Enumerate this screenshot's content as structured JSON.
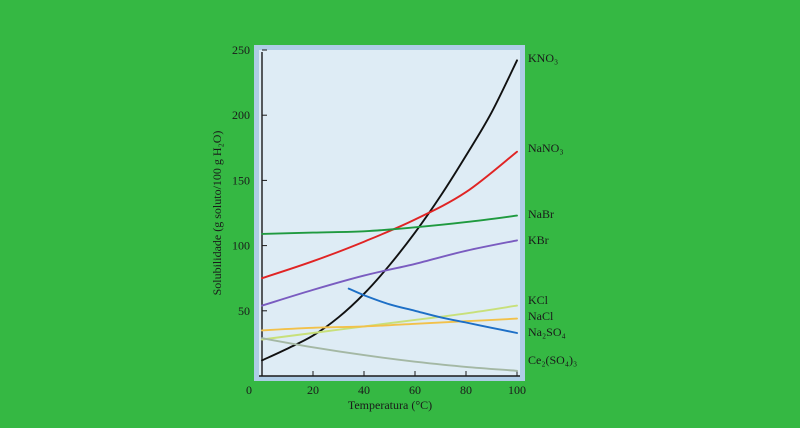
{
  "chart_data": {
    "type": "line",
    "xlabel": "Temperatura (°C)",
    "ylabel": "Solubilidade (g soluto/100 g H₂O)",
    "xlim": [
      0,
      100
    ],
    "ylim": [
      0,
      250
    ],
    "x_ticks": [
      "0",
      "20",
      "40",
      "60",
      "80",
      "100"
    ],
    "y_ticks": [
      "50",
      "100",
      "150",
      "200",
      "250"
    ],
    "grid": false,
    "legend": "labels at right end of each curve",
    "colors": {
      "background": "#35b843",
      "plot_fill": "#deecf5",
      "frame": "#aecde6",
      "axis": "#1a1a1a"
    },
    "series": [
      {
        "name": "KNO₃",
        "color": "#111111",
        "x": [
          0,
          10,
          20,
          30,
          40,
          50,
          60,
          70,
          80,
          90,
          100
        ],
        "y": [
          12,
          21,
          31,
          45,
          63,
          85,
          110,
          138,
          169,
          202,
          242
        ]
      },
      {
        "name": "NaNO₃",
        "color": "#e02424",
        "x": [
          0,
          20,
          40,
          60,
          80,
          100
        ],
        "y": [
          75,
          88,
          103,
          120,
          141,
          172
        ]
      },
      {
        "name": "NaBr",
        "color": "#1f9a3f",
        "x": [
          0,
          20,
          40,
          60,
          80,
          100
        ],
        "y": [
          109,
          110,
          111,
          114,
          118,
          123
        ]
      },
      {
        "name": "KBr",
        "color": "#7a5cc0",
        "x": [
          0,
          20,
          40,
          60,
          80,
          100
        ],
        "y": [
          54,
          66,
          77,
          86,
          96,
          104
        ]
      },
      {
        "name": "KCl",
        "color": "#c8e07a",
        "x": [
          0,
          20,
          40,
          60,
          80,
          100
        ],
        "y": [
          28,
          33,
          38,
          43,
          48,
          54
        ]
      },
      {
        "name": "NaCl",
        "color": "#f2c14a",
        "x": [
          0,
          20,
          40,
          60,
          80,
          100
        ],
        "y": [
          35,
          37,
          38,
          40,
          42,
          44
        ]
      },
      {
        "name": "Na₂SO₄",
        "color": "#1d6fc6",
        "x": [
          34,
          40,
          50,
          60,
          70,
          80,
          90,
          100
        ],
        "y": [
          67,
          62,
          55,
          50,
          45,
          41,
          37,
          33
        ]
      },
      {
        "name": "Ce₂(SO₄)₃",
        "color": "#a4b8a4",
        "x": [
          0,
          20,
          40,
          60,
          80,
          100
        ],
        "y": [
          29,
          22,
          16,
          11,
          7,
          4
        ]
      }
    ]
  }
}
